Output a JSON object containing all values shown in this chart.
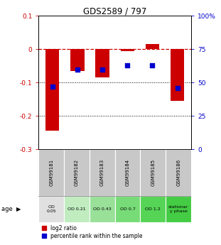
{
  "title": "GDS2589 / 797",
  "samples": [
    "GSM99181",
    "GSM99182",
    "GSM99183",
    "GSM99184",
    "GSM99185",
    "GSM99186"
  ],
  "log2_ratio": [
    -0.245,
    -0.065,
    -0.085,
    -0.005,
    0.015,
    -0.155
  ],
  "percentile_rank": [
    47,
    60,
    60,
    63,
    63,
    46
  ],
  "ylim_left": [
    -0.3,
    0.1
  ],
  "ylim_right": [
    0,
    100
  ],
  "yticks_left": [
    0.1,
    0,
    -0.1,
    -0.2,
    -0.3
  ],
  "yticks_right": [
    100,
    75,
    50,
    25,
    0
  ],
  "dotted_lines": [
    -0.1,
    -0.2
  ],
  "bar_color": "#cc0000",
  "dot_color": "#0000cc",
  "bar_width": 0.55,
  "dot_size": 22,
  "age_labels": [
    "OD\n0.05",
    "OD 0.21",
    "OD 0.43",
    "OD 0.7",
    "OD 1.2",
    "stationar\ny phase"
  ],
  "age_colors": [
    "#e0e0e0",
    "#c0ecc0",
    "#99e099",
    "#77dc77",
    "#55d455",
    "#44cc44"
  ],
  "sample_bg_color": "#c8c8c8",
  "legend_red": "log2 ratio",
  "legend_blue": "percentile rank within the sample",
  "axis_color_left": "#cc0000",
  "axis_color_right": "#0000cc"
}
